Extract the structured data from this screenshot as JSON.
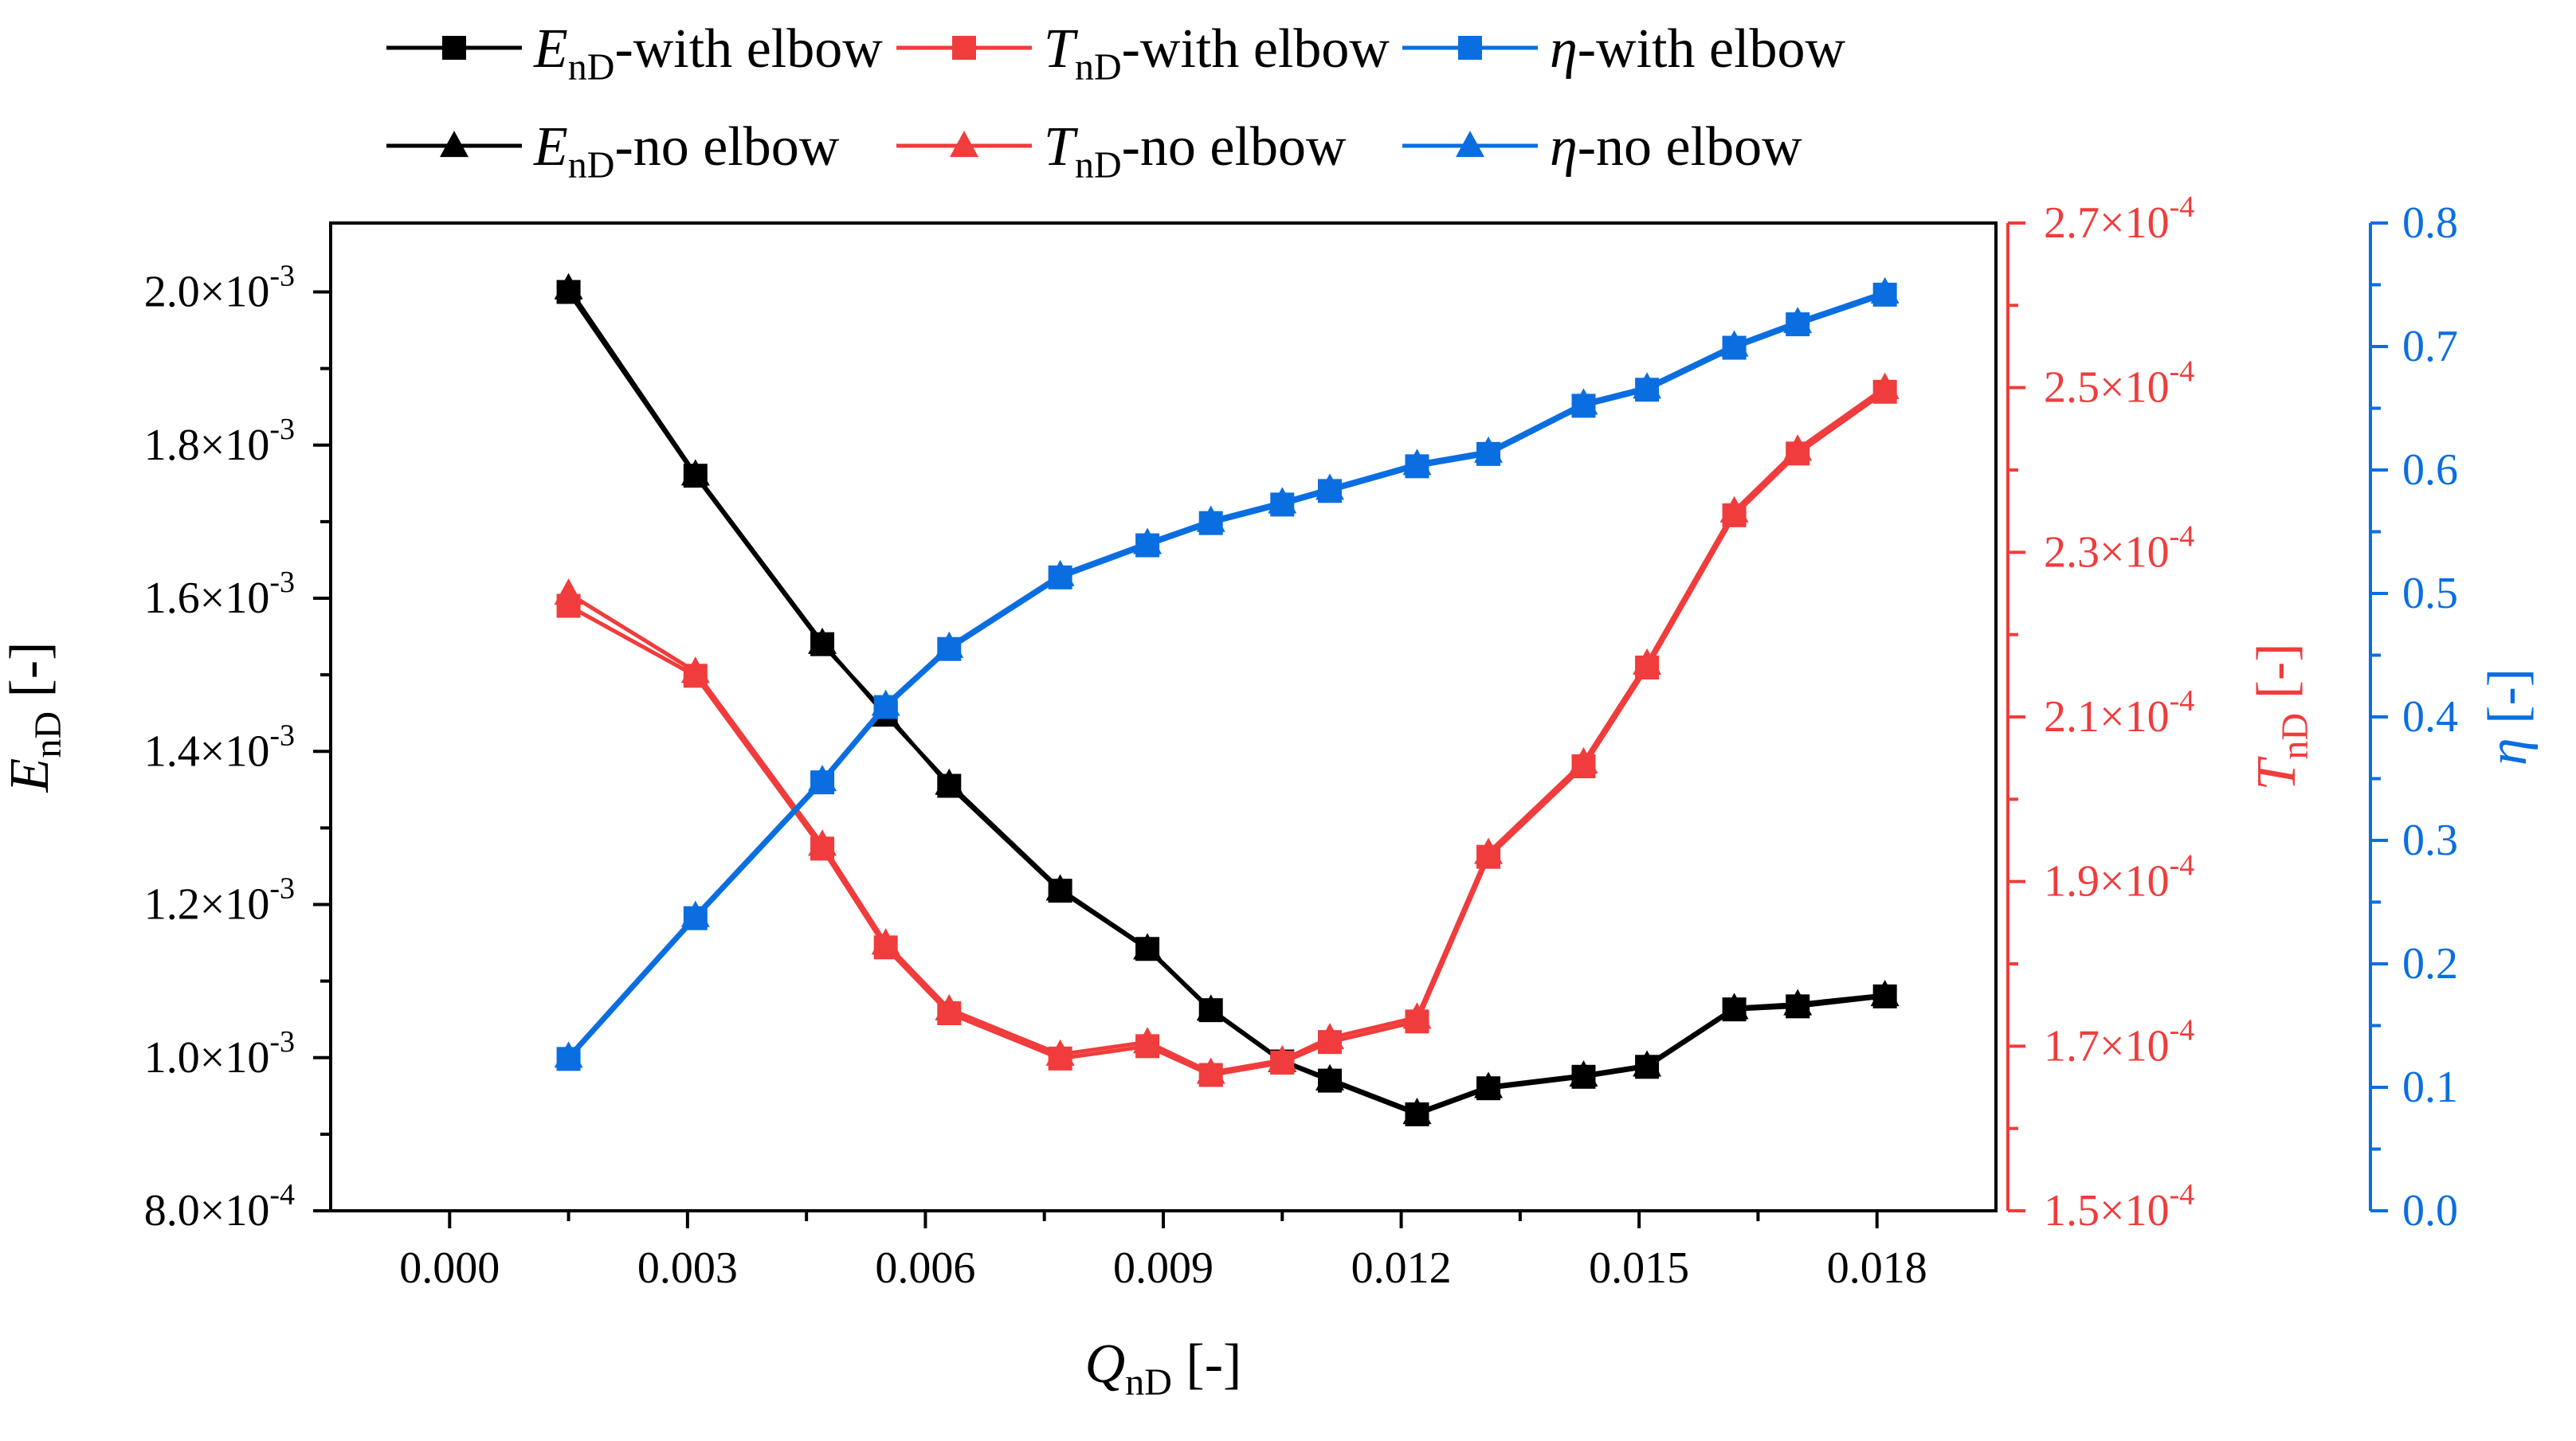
{
  "colors": {
    "enD": "#000000",
    "tnD": "#f03c3c",
    "eta": "#0a6ee0",
    "axis": "#000000"
  },
  "chart_data": {
    "type": "line",
    "x": [
      0.0015,
      0.0031,
      0.0047,
      0.0055,
      0.0063,
      0.0077,
      0.0088,
      0.0096,
      0.0105,
      0.0111,
      0.0122,
      0.0131,
      0.0143,
      0.0151,
      0.0162,
      0.017,
      0.0181
    ],
    "xlim": [
      -0.0015,
      0.0195
    ],
    "x_ticks": [
      0.0,
      0.003,
      0.006,
      0.009,
      0.012,
      0.015,
      0.018
    ],
    "x_tick_labels": [
      "0.000",
      "0.003",
      "0.006",
      "0.009",
      "0.012",
      "0.015",
      "0.018"
    ],
    "xlabel": {
      "main": "Q",
      "sub": "nD",
      "rest": " [-]"
    },
    "axes": {
      "left": {
        "label": {
          "main": "E",
          "sub": "nD",
          "rest": " [-]"
        },
        "ylim": [
          0.0008,
          0.00209
        ],
        "ticks": [
          0.0008,
          0.001,
          0.0012,
          0.0014,
          0.0016,
          0.0018,
          0.002
        ],
        "tick_labels": [
          {
            "mant": "8.0×10",
            "exp": "-4"
          },
          {
            "mant": "1.0×10",
            "exp": "-3"
          },
          {
            "mant": "1.2×10",
            "exp": "-3"
          },
          {
            "mant": "1.4×10",
            "exp": "-3"
          },
          {
            "mant": "1.6×10",
            "exp": "-3"
          },
          {
            "mant": "1.8×10",
            "exp": "-3"
          },
          {
            "mant": "2.0×10",
            "exp": "-3"
          }
        ]
      },
      "right1": {
        "label": {
          "main": "T",
          "sub": "nD",
          "rest": " [-]"
        },
        "ylim": [
          0.00015,
          0.00027
        ],
        "ticks": [
          0.00015,
          0.00017,
          0.00019,
          0.00021,
          0.00023,
          0.00025,
          0.00027
        ],
        "tick_labels": [
          {
            "mant": "1.5×10",
            "exp": "-4"
          },
          {
            "mant": "1.7×10",
            "exp": "-4"
          },
          {
            "mant": "1.9×10",
            "exp": "-4"
          },
          {
            "mant": "2.1×10",
            "exp": "-4"
          },
          {
            "mant": "2.3×10",
            "exp": "-4"
          },
          {
            "mant": "2.5×10",
            "exp": "-4"
          },
          {
            "mant": "2.7×10",
            "exp": "-4"
          }
        ]
      },
      "right2": {
        "label": {
          "main": "η",
          "sub": "",
          "rest": " [-]"
        },
        "ylim": [
          0.0,
          0.8
        ],
        "ticks": [
          0.0,
          0.1,
          0.2,
          0.3,
          0.4,
          0.5,
          0.6,
          0.7,
          0.8
        ],
        "tick_labels": [
          "0.0",
          "0.1",
          "0.2",
          "0.3",
          "0.4",
          "0.5",
          "0.6",
          "0.7",
          "0.8"
        ]
      }
    },
    "series": [
      {
        "id": "enD-with",
        "name": {
          "main": "E",
          "sub": "nD",
          "rest": "-with elbow"
        },
        "axis": "left",
        "color": "#000000",
        "marker": "square",
        "values": [
          0.002,
          0.00176,
          0.00154,
          0.00145,
          0.001355,
          0.001218,
          0.001142,
          0.001062,
          0.000995,
          0.00097,
          0.000926,
          0.00096,
          0.000975,
          0.000988,
          0.001063,
          0.001067,
          0.00108
        ]
      },
      {
        "id": "enD-no",
        "name": {
          "main": "E",
          "sub": "nD",
          "rest": "-no elbow"
        },
        "axis": "left",
        "color": "#000000",
        "marker": "triangle",
        "values": [
          0.002005,
          0.001762,
          0.001542,
          0.001447,
          0.001358,
          0.00122,
          0.001143,
          0.001063,
          0.000996,
          0.000972,
          0.000928,
          0.000962,
          0.000977,
          0.00099,
          0.001065,
          0.00107,
          0.001082
        ]
      },
      {
        "id": "tnD-with",
        "name": {
          "main": "T",
          "sub": "nD",
          "rest": "-with elbow"
        },
        "axis": "right1",
        "color": "#f03c3c",
        "marker": "square",
        "values": [
          0.0002235,
          0.000215,
          0.000194,
          0.000182,
          0.000174,
          0.0001685,
          0.00017,
          0.0001665,
          0.000168,
          0.0001705,
          0.000173,
          0.000193,
          0.000204,
          0.000216,
          0.0002345,
          0.000242,
          0.0002495
        ]
      },
      {
        "id": "tnD-no",
        "name": {
          "main": "T",
          "sub": "nD",
          "rest": "-no elbow"
        },
        "axis": "right1",
        "color": "#f03c3c",
        "marker": "triangle",
        "values": [
          0.000225,
          0.0002155,
          0.0001945,
          0.0001825,
          0.0001745,
          0.000169,
          0.0001705,
          0.0001668,
          0.0001683,
          0.000171,
          0.0001735,
          0.0001935,
          0.0002045,
          0.0002165,
          0.000235,
          0.0002425,
          0.00025
        ]
      },
      {
        "id": "eta-with",
        "name": {
          "main": "η",
          "sub": "",
          "rest": "-with elbow"
        },
        "axis": "right2",
        "color": "#0a6ee0",
        "marker": "square",
        "values": [
          0.123,
          0.237,
          0.347,
          0.408,
          0.455,
          0.513,
          0.539,
          0.557,
          0.572,
          0.583,
          0.603,
          0.613,
          0.652,
          0.665,
          0.699,
          0.718,
          0.742
        ]
      },
      {
        "id": "eta-no",
        "name": {
          "main": "η",
          "sub": "",
          "rest": "-no elbow"
        },
        "axis": "right2",
        "color": "#0a6ee0",
        "marker": "triangle",
        "values": [
          0.125,
          0.239,
          0.349,
          0.41,
          0.457,
          0.515,
          0.541,
          0.559,
          0.574,
          0.585,
          0.605,
          0.615,
          0.654,
          0.667,
          0.701,
          0.72,
          0.744
        ]
      }
    ],
    "legend": {
      "placement": "top",
      "order": [
        "enD-with",
        "tnD-with",
        "eta-with",
        "enD-no",
        "tnD-no",
        "eta-no"
      ]
    },
    "grid": false
  }
}
